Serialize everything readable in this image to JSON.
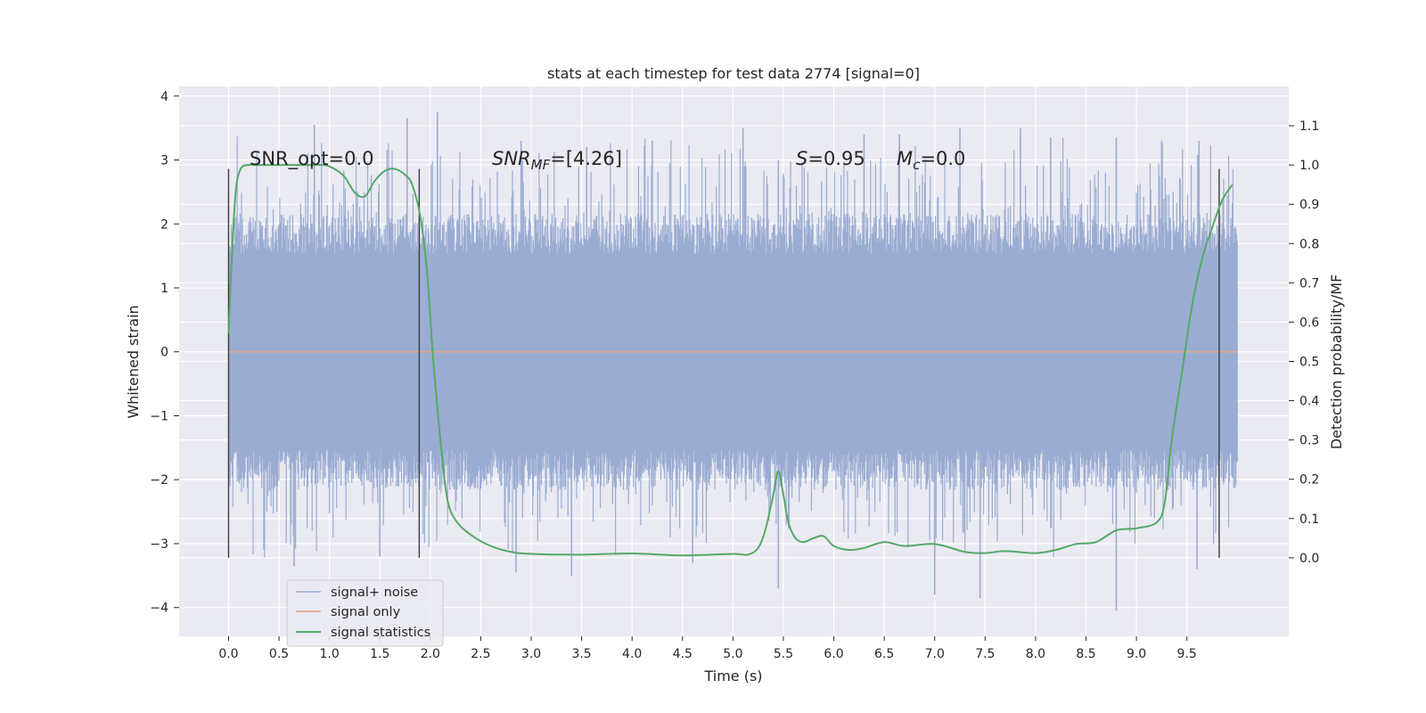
{
  "chart_data": {
    "type": "line",
    "title": "stats at each timestep for test data 2774 [signal=0]",
    "xlabel": "Time (s)",
    "ylabel_left": "Whitened strain",
    "ylabel_right": "Detection probability/MF",
    "xlim": [
      -0.49,
      10.51
    ],
    "ylim_left": [
      -4.45,
      4.15
    ],
    "ylim_right": [
      -0.2,
      1.2
    ],
    "grid": true,
    "legend_position": "lower-left",
    "x_ticks": [
      "0.0",
      "0.5",
      "1.0",
      "1.5",
      "2.0",
      "2.5",
      "3.0",
      "3.5",
      "4.0",
      "4.5",
      "5.0",
      "5.5",
      "6.0",
      "6.5",
      "7.0",
      "7.5",
      "8.0",
      "8.5",
      "9.0",
      "9.5"
    ],
    "x_tick_values": [
      0.0,
      0.5,
      1.0,
      1.5,
      2.0,
      2.5,
      3.0,
      3.5,
      4.0,
      4.5,
      5.0,
      5.5,
      6.0,
      6.5,
      7.0,
      7.5,
      8.0,
      8.5,
      9.0,
      9.5
    ],
    "y_ticks_left": [
      "−4",
      "−3",
      "−2",
      "−1",
      "0",
      "1",
      "2",
      "3",
      "4"
    ],
    "y_tick_values_left": [
      -4,
      -3,
      -2,
      -1,
      0,
      1,
      2,
      3,
      4
    ],
    "y_ticks_right": [
      "0.0",
      "0.1",
      "0.2",
      "0.3",
      "0.4",
      "0.5",
      "0.6",
      "0.7",
      "0.8",
      "0.9",
      "1.0",
      "1.1"
    ],
    "y_tick_values_right": [
      0.0,
      0.1,
      0.2,
      0.3,
      0.4,
      0.5,
      0.6,
      0.7,
      0.8,
      0.9,
      1.0,
      1.1
    ],
    "vertical_lines_x": [
      0.0,
      1.89,
      9.82
    ],
    "vertical_lines_range": [
      0.0,
      1.0
    ],
    "annotations": {
      "snr_opt": "SNR_opt=0.0",
      "snr_mf_name": "SNR",
      "snr_mf_sub": "MF",
      "snr_mf_value": "=[4.26]",
      "s_name": "S",
      "s_value": "=0.95",
      "mc_name": "M",
      "mc_sub": "c",
      "mc_value": "=0.0"
    },
    "series": [
      {
        "name": "signal+ noise",
        "axis": "left",
        "color": "#9aacd2",
        "x_range": [
          0.0,
          10.0
        ],
        "typical_envelope": [
          -1.8,
          1.8
        ],
        "peaks_x": [
          0.85,
          1.77,
          2.07,
          2.9,
          3.55,
          4.2,
          5.1,
          5.45,
          6.3,
          6.65,
          7.25,
          7.85,
          8.15,
          8.8,
          9.25,
          9.62
        ],
        "peaks_y": [
          3.55,
          3.65,
          3.75,
          3.3,
          3.2,
          3.3,
          3.5,
          3.0,
          3.4,
          3.4,
          3.5,
          3.5,
          3.35,
          3.35,
          3.3,
          3.3
        ],
        "troughs_x": [
          0.35,
          0.65,
          1.5,
          2.85,
          3.4,
          4.6,
          5.45,
          7.0,
          7.45,
          8.8,
          9.6
        ],
        "troughs_y": [
          -3.1,
          -3.35,
          -3.2,
          -3.45,
          -3.5,
          -3.3,
          -3.7,
          -3.8,
          -3.85,
          -4.05,
          -3.4
        ]
      },
      {
        "name": "signal only",
        "axis": "left",
        "color": "#e8a385",
        "x": [
          0.0,
          10.0
        ],
        "y": [
          0.0,
          0.0
        ]
      },
      {
        "name": "signal statistics",
        "axis": "right",
        "color": "#55a868",
        "x": [
          0.0,
          0.03,
          0.07,
          0.12,
          0.2,
          0.3,
          0.45,
          0.6,
          0.8,
          0.95,
          1.05,
          1.15,
          1.25,
          1.35,
          1.45,
          1.55,
          1.65,
          1.75,
          1.82,
          1.9,
          1.97,
          2.03,
          2.1,
          2.15,
          2.2,
          2.3,
          2.45,
          2.6,
          2.8,
          3.0,
          3.5,
          4.0,
          4.5,
          5.0,
          5.15,
          5.25,
          5.32,
          5.4,
          5.45,
          5.5,
          5.55,
          5.62,
          5.7,
          5.8,
          5.9,
          6.0,
          6.15,
          6.3,
          6.5,
          6.7,
          7.0,
          7.3,
          7.5,
          7.7,
          8.0,
          8.2,
          8.4,
          8.6,
          8.8,
          9.0,
          9.2,
          9.28,
          9.35,
          9.45,
          9.55,
          9.65,
          9.75,
          9.85,
          9.95
        ],
        "y": [
          0.57,
          0.75,
          0.93,
          0.99,
          1.0,
          1.0,
          1.0,
          1.0,
          1.0,
          1.0,
          0.99,
          0.97,
          0.93,
          0.92,
          0.96,
          0.985,
          0.99,
          0.975,
          0.95,
          0.87,
          0.72,
          0.5,
          0.3,
          0.18,
          0.12,
          0.08,
          0.05,
          0.03,
          0.015,
          0.01,
          0.008,
          0.011,
          0.006,
          0.01,
          0.008,
          0.025,
          0.07,
          0.16,
          0.22,
          0.16,
          0.09,
          0.05,
          0.04,
          0.05,
          0.055,
          0.03,
          0.02,
          0.025,
          0.04,
          0.03,
          0.035,
          0.015,
          0.012,
          0.017,
          0.012,
          0.02,
          0.035,
          0.04,
          0.07,
          0.075,
          0.09,
          0.14,
          0.3,
          0.47,
          0.64,
          0.76,
          0.84,
          0.91,
          0.95
        ]
      }
    ]
  }
}
